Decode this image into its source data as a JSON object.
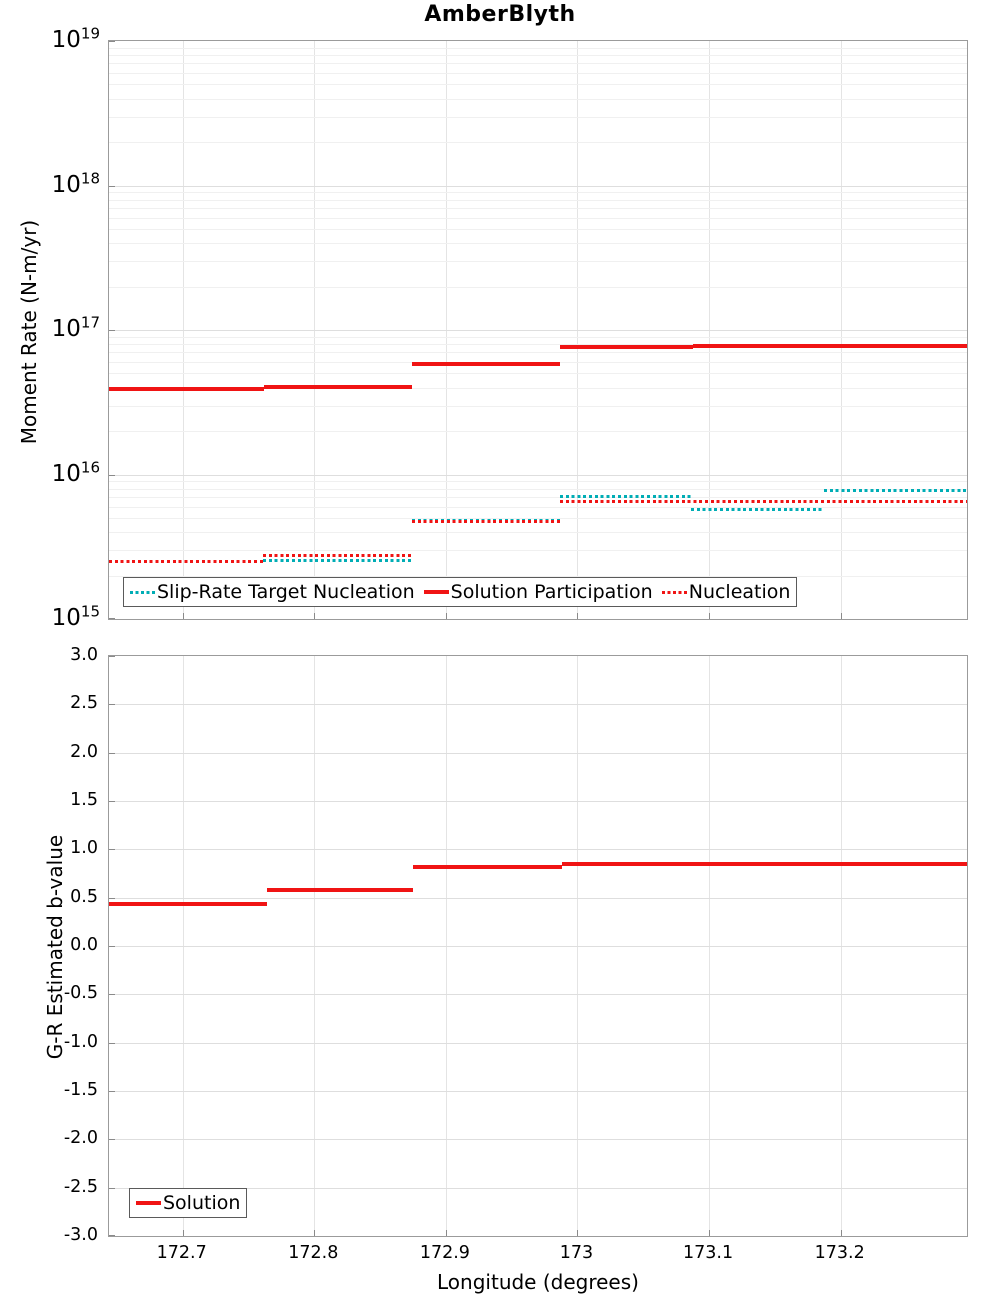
{
  "title": "AmberBlyth",
  "colors": {
    "red": "#f01414",
    "cyan": "#00adb5",
    "frame": "#9b9b9b"
  },
  "chart_data": [
    {
      "type": "line",
      "title": "AmberBlyth",
      "ylabel": "Moment Rate (N-m/yr)",
      "yscale": "log",
      "ylim_log": [
        15,
        19
      ],
      "xlim": [
        172.644,
        173.296
      ],
      "grid": true,
      "x_ticks": [
        172.7,
        172.8,
        172.9,
        173.0,
        173.1,
        173.2
      ],
      "x_tick_labels_show": false,
      "y_tick_labels": [
        {
          "mantissa": "10",
          "exp": "19"
        },
        {
          "mantissa": "10",
          "exp": "18"
        },
        {
          "mantissa": "10",
          "exp": "17"
        },
        {
          "mantissa": "10",
          "exp": "16"
        },
        {
          "mantissa": "10",
          "exp": "15"
        }
      ],
      "legend_position": "lower left",
      "legend_items": [
        {
          "label": "Slip-Rate Target Nucleation",
          "swatch": "dot-cyan"
        },
        {
          "label": "Solution Participation",
          "swatch": "solid-red"
        },
        {
          "label": "Nucleation",
          "swatch": "dot-red"
        }
      ],
      "series": [
        {
          "name": "Slip-Rate Target Nucleation",
          "color": "#00adb5",
          "style": "dotted",
          "segments": [
            {
              "x0": 172.644,
              "x1": 172.761,
              "y": 2500000000000000.0
            },
            {
              "x0": 172.761,
              "x1": 172.874,
              "y": 2550000000000000.0
            },
            {
              "x0": 172.874,
              "x1": 172.987,
              "y": 4800000000000000.0
            },
            {
              "x0": 172.987,
              "x1": 173.086,
              "y": 7000000000000000.0
            },
            {
              "x0": 173.086,
              "x1": 173.187,
              "y": 5700000000000000.0
            },
            {
              "x0": 173.187,
              "x1": 173.296,
              "y": 7700000000000000.0
            }
          ]
        },
        {
          "name": "Nucleation",
          "color": "#f01414",
          "style": "dotted",
          "segments": [
            {
              "x0": 172.644,
              "x1": 172.761,
              "y": 2500000000000000.0
            },
            {
              "x0": 172.761,
              "x1": 172.874,
              "y": 2750000000000000.0
            },
            {
              "x0": 172.874,
              "x1": 172.987,
              "y": 4700000000000000.0
            },
            {
              "x0": 172.987,
              "x1": 173.296,
              "y": 6500000000000000.0
            }
          ]
        },
        {
          "name": "Solution Participation",
          "color": "#f01414",
          "style": "solid",
          "segments": [
            {
              "x0": 172.644,
              "x1": 172.762,
              "y": 3.9e+16
            },
            {
              "x0": 172.762,
              "x1": 172.874,
              "y": 4.05e+16
            },
            {
              "x0": 172.874,
              "x1": 172.987,
              "y": 5.8e+16
            },
            {
              "x0": 172.987,
              "x1": 173.088,
              "y": 7.6e+16
            },
            {
              "x0": 173.088,
              "x1": 173.187,
              "y": 7.75e+16
            },
            {
              "x0": 173.187,
              "x1": 173.296,
              "y": 7.75e+16
            }
          ]
        }
      ]
    },
    {
      "type": "line",
      "ylabel": "G-R Estimated b-value",
      "xlabel": "Longitude (degrees)",
      "yscale": "linear",
      "ylim": [
        -3.0,
        3.0
      ],
      "xlim": [
        172.644,
        173.296
      ],
      "grid": true,
      "x_ticks": [
        172.7,
        172.8,
        172.9,
        173.0,
        173.1,
        173.2
      ],
      "x_tick_labels_show": true,
      "x_tick_labels": [
        "172.7",
        "172.8",
        "172.9",
        "173",
        "173.1",
        "173.2"
      ],
      "y_ticks": [
        3.0,
        2.5,
        2.0,
        1.5,
        1.0,
        0.5,
        0.0,
        -0.5,
        -1.0,
        -1.5,
        -2.0,
        -2.5,
        -3.0
      ],
      "y_tick_labels": [
        "3.0",
        "2.5",
        "2.0",
        "1.5",
        "1.0",
        "0.5",
        "0.0",
        "-0.5",
        "-1.0",
        "-1.5",
        "-2.0",
        "-2.5",
        "-3.0"
      ],
      "legend_position": "lower left",
      "legend_items": [
        {
          "label": "Solution",
          "swatch": "solid-red"
        }
      ],
      "series": [
        {
          "name": "Solution",
          "color": "#f01414",
          "style": "solid",
          "segments": [
            {
              "x0": 172.644,
              "x1": 172.764,
              "y": 0.43
            },
            {
              "x0": 172.764,
              "x1": 172.875,
              "y": 0.58
            },
            {
              "x0": 172.875,
              "x1": 172.988,
              "y": 0.82
            },
            {
              "x0": 172.988,
              "x1": 173.088,
              "y": 0.85
            },
            {
              "x0": 173.088,
              "x1": 173.187,
              "y": 0.85
            },
            {
              "x0": 173.187,
              "x1": 173.296,
              "y": 0.85
            }
          ]
        }
      ]
    }
  ]
}
